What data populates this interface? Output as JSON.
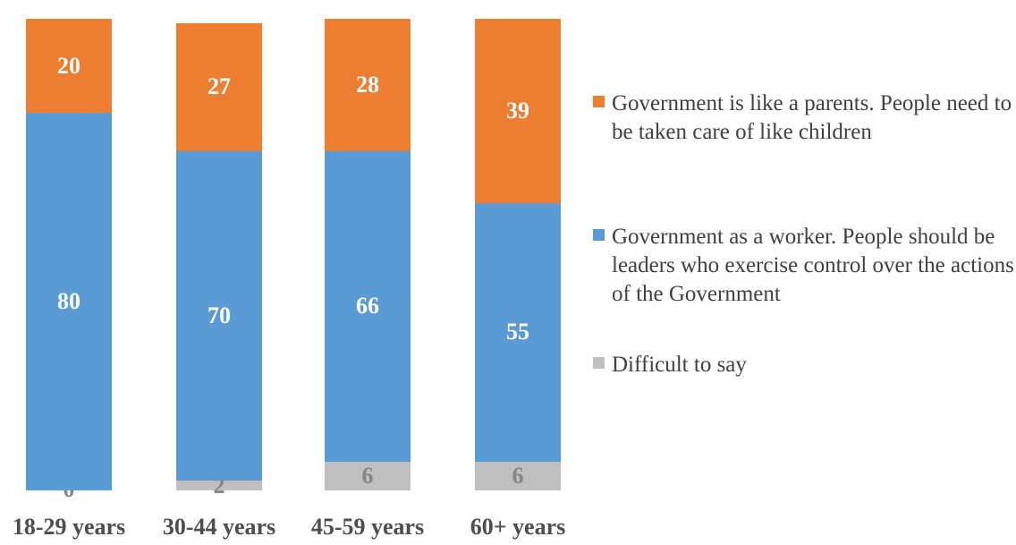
{
  "chart_data": {
    "type": "bar",
    "stacked": true,
    "orientation": "vertical",
    "categories": [
      "18-29 years",
      "30-44 years",
      "45-59 years",
      "60+ years"
    ],
    "series": [
      {
        "name": "Difficult to say",
        "color": "#bfbfbf",
        "label_color": "#858585",
        "values": [
          0,
          2,
          6,
          6
        ]
      },
      {
        "name": "Government as a worker. People should be leaders who exercise control over the actions of the Government",
        "color": "#5b9bd5",
        "label_color": "#ffffff",
        "values": [
          80,
          70,
          66,
          55
        ]
      },
      {
        "name": "Government is like a parents. People need to be taken care of like children",
        "color": "#ed7d31",
        "label_color": "#ffffff",
        "values": [
          20,
          27,
          28,
          39
        ]
      }
    ],
    "ylim": [
      0,
      100
    ],
    "grid": false,
    "axis_lines": false,
    "data_labels": true,
    "legend_position": "right"
  },
  "legend": {
    "items": [
      {
        "label": "Government is like a parents. People need to be taken care of like children",
        "color": "#ed7d31"
      },
      {
        "label": "Government as a worker. People should be leaders who exercise control over the actions of the Government",
        "color": "#5b9bd5"
      },
      {
        "label": "Difficult to say",
        "color": "#bfbfbf"
      }
    ]
  },
  "colors": {
    "orange": "#ed7d31",
    "blue": "#5b9bd5",
    "gray": "#bfbfbf",
    "category_text": "#4d4d4d",
    "legend_text": "#404040",
    "gray_value_text": "#858585"
  }
}
